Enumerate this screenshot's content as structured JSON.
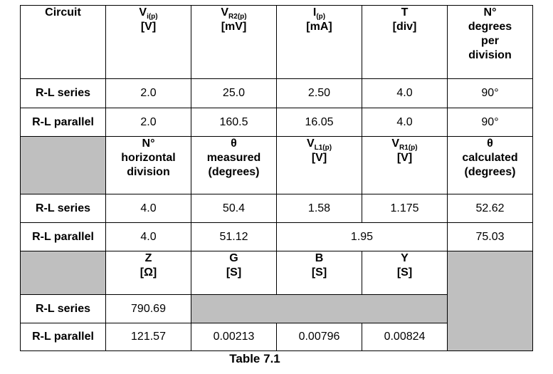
{
  "table": {
    "header1": {
      "circuit": "Circuit",
      "vi_main": "V",
      "vi_sub": "i(p)",
      "vi_unit": "[V]",
      "vr2_main": "V",
      "vr2_sub": "R2(p)",
      "vr2_unit": "[mV]",
      "ip_main": "I",
      "ip_sub": "(p)",
      "ip_unit": "[mA]",
      "t_main": "T",
      "t_unit": "[div]",
      "n1": "N°",
      "n2": "degrees",
      "n3": "per",
      "n4": "division"
    },
    "rl_series_1": {
      "label": "R-L series",
      "vi": "2.0",
      "vr2": "25.0",
      "ip": "2.50",
      "t": "4.0",
      "deg": "90°"
    },
    "rl_parallel_1": {
      "label": "R-L parallel",
      "vi": "2.0",
      "vr2": "160.5",
      "ip": "16.05",
      "t": "4.0",
      "deg": "90°"
    },
    "header2": {
      "h1": "N°",
      "h2": "horizontal",
      "h3": "division",
      "m1": "θ",
      "m2": "measured",
      "m3": "(degrees)",
      "vl1_main": "V",
      "vl1_sub": "L1(p)",
      "vl1_unit": "[V]",
      "vr1_main": "V",
      "vr1_sub": "R1(p)",
      "vr1_unit": "[V]",
      "c1": "θ",
      "c2": "calculated",
      "c3": "(degrees)"
    },
    "rl_series_2": {
      "label": "R-L series",
      "hdiv": "4.0",
      "theta_m": "50.4",
      "vl1": "1.58",
      "vr1": "1.175",
      "theta_c": "52.62"
    },
    "rl_parallel_2": {
      "label": "R-L parallel",
      "hdiv": "4.0",
      "theta_m": "51.12",
      "v_merged": "1.95",
      "theta_c": "75.03"
    },
    "header3": {
      "z": "Z",
      "z_unit": "[Ω]",
      "g": "G",
      "g_unit": "[S]",
      "b": "B",
      "b_unit": "[S]",
      "y": "Y",
      "y_unit": "[S]"
    },
    "rl_series_3": {
      "label": "R-L series",
      "z": "790.69"
    },
    "rl_parallel_3": {
      "label": "R-L parallel",
      "z": "121.57",
      "g": "0.00213",
      "b": "0.00796",
      "y": "0.00824"
    }
  },
  "caption": "Table 7.1"
}
